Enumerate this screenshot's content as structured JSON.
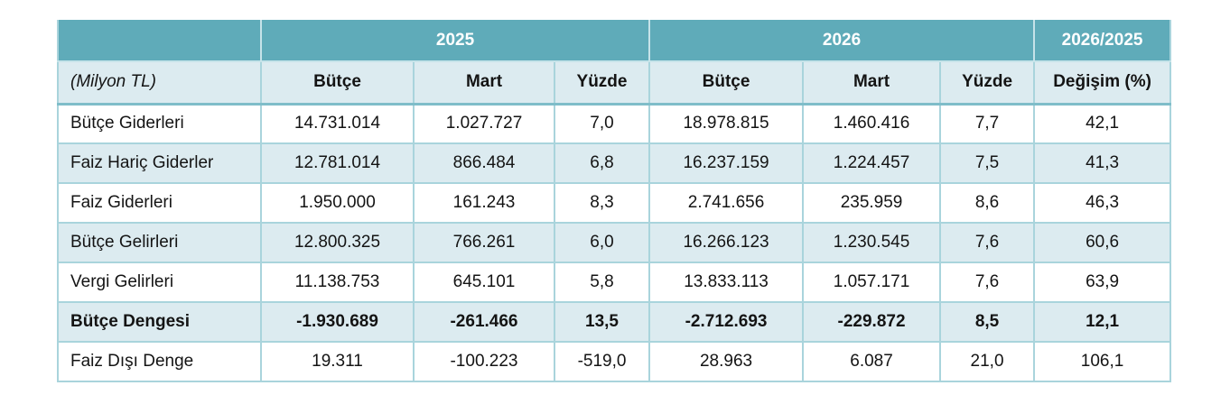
{
  "table": {
    "group_headers": {
      "year_left": "2025",
      "year_right": "2026",
      "ratio": "2026/2025"
    },
    "unit_label": "(Milyon TL)",
    "sub_headers": [
      "Bütçe",
      "Mart",
      "Yüzde",
      "Bütçe",
      "Mart",
      "Yüzde",
      "Değişim (%)"
    ],
    "rows": [
      {
        "label": "Bütçe Giderleri",
        "bold": false,
        "values": [
          "14.731.014",
          "1.027.727",
          "7,0",
          "18.978.815",
          "1.460.416",
          "7,7",
          "42,1"
        ]
      },
      {
        "label": "Faiz Hariç Giderler",
        "bold": false,
        "values": [
          "12.781.014",
          "866.484",
          "6,8",
          "16.237.159",
          "1.224.457",
          "7,5",
          "41,3"
        ]
      },
      {
        "label": "Faiz Giderleri",
        "bold": false,
        "values": [
          "1.950.000",
          "161.243",
          "8,3",
          "2.741.656",
          "235.959",
          "8,6",
          "46,3"
        ]
      },
      {
        "label": "Bütçe Gelirleri",
        "bold": false,
        "values": [
          "12.800.325",
          "766.261",
          "6,0",
          "16.266.123",
          "1.230.545",
          "7,6",
          "60,6"
        ]
      },
      {
        "label": "Vergi Gelirleri",
        "bold": false,
        "values": [
          "11.138.753",
          "645.101",
          "5,8",
          "13.833.113",
          "1.057.171",
          "7,6",
          "63,9"
        ]
      },
      {
        "label": "Bütçe Dengesi",
        "bold": true,
        "values": [
          "-1.930.689",
          "-261.466",
          "13,5",
          "-2.712.693",
          "-229.872",
          "8,5",
          "12,1"
        ]
      },
      {
        "label": "Faiz Dışı Denge",
        "bold": false,
        "values": [
          "19.311",
          "-100.223",
          "-519,0",
          "28.963",
          "6.087",
          "21,0",
          "106,1"
        ]
      }
    ],
    "colors": {
      "header_teal": "#5FABB9",
      "row_light_blue": "#DCEBF0",
      "grid_border": "#A9D4DC",
      "header_divider": "#C6E3E9",
      "header_underline": "#7FBDC9",
      "text": "#141414",
      "header_text": "#FFFFFF"
    }
  }
}
